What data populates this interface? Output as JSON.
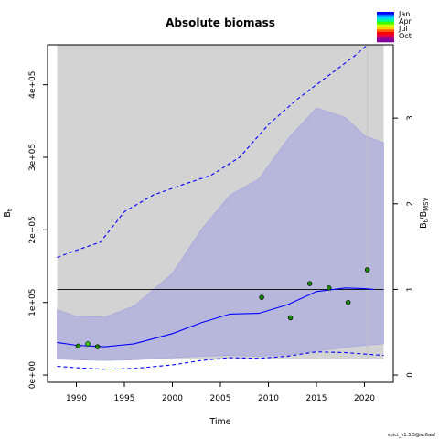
{
  "chart_data": {
    "type": "line",
    "title": "Absolute biomass",
    "xlabel": "Time",
    "ylabel": "B",
    "ylabel_sub": "t",
    "y2label": "B",
    "y2label_sub": "t",
    "y2label_mid": "/B",
    "y2label_sub2": "MSY",
    "footer": "spict_v1.3.5@ac6aaf",
    "xlim": [
      1987,
      2023
    ],
    "ylim": [
      -10000,
      455000
    ],
    "x_ticks": [
      1990,
      1995,
      2000,
      2005,
      2010,
      2015,
      2020
    ],
    "y_ticks": [
      {
        "value": 0,
        "label": "0e+00"
      },
      {
        "value": 100000,
        "label": "1e+05"
      },
      {
        "value": 200000,
        "label": "2e+05"
      },
      {
        "value": 300000,
        "label": "3e+05"
      },
      {
        "value": 400000,
        "label": "4e+05"
      }
    ],
    "y2_ticks": [
      {
        "value": 0,
        "label": "0"
      },
      {
        "value": 1,
        "label": "1"
      },
      {
        "value": 2,
        "label": "2"
      },
      {
        "value": 3,
        "label": "3"
      }
    ],
    "bmsy": 118000,
    "grey_region": {
      "x_start": 1988,
      "x_end": 2022,
      "y_bottom": 22000
    },
    "vertical_line_x": 2020.3,
    "bmsy_band": {
      "x": [
        1988,
        1990,
        1993,
        1996,
        2000,
        2003,
        2006,
        2009,
        2012,
        2015,
        2018,
        2020,
        2022
      ],
      "lower": [
        22000,
        21000,
        20000,
        21000,
        24000,
        26000,
        27000,
        26000,
        28000,
        33000,
        38000,
        41000,
        43000
      ],
      "upper": [
        90000,
        81000,
        80000,
        95000,
        140000,
        200000,
        248000,
        270000,
        325000,
        368000,
        355000,
        330000,
        320000
      ]
    },
    "series": [
      {
        "name": "",
        "style": "solid",
        "x": [
          1988,
          1990,
          1993,
          1996,
          2000,
          2003,
          2006,
          2009,
          2012,
          2015,
          2018,
          2020,
          2021
        ],
        "values": [
          45000,
          41000,
          39000,
          43000,
          57000,
          72000,
          84000,
          85000,
          97000,
          115000,
          120000,
          119000,
          118000
        ]
      },
      {
        "name": "",
        "style": "dashed",
        "x": [
          1988,
          1990,
          1992.5,
          1995,
          1998,
          2001,
          2004,
          2007,
          2010,
          2013,
          2016,
          2019,
          2020.6
        ],
        "values": [
          162000,
          172000,
          183000,
          225000,
          248000,
          262000,
          275000,
          300000,
          345000,
          380000,
          410000,
          440000,
          458000
        ]
      },
      {
        "name": "",
        "style": "dashed",
        "x": [
          1988,
          1990,
          1993,
          1996,
          2000,
          2003,
          2006,
          2009,
          2012,
          2015,
          2018,
          2020,
          2022
        ],
        "values": [
          12000,
          10000,
          8000,
          9000,
          14000,
          20000,
          24000,
          23000,
          26000,
          32000,
          31000,
          29000,
          27000
        ]
      }
    ],
    "observations": [
      {
        "x": 1990.2,
        "y": 40000,
        "color": "#1a8a00"
      },
      {
        "x": 1991.2,
        "y": 43000,
        "color": "#2bd000"
      },
      {
        "x": 1992.2,
        "y": 39000,
        "color": "#1a8a00"
      },
      {
        "x": 2009.3,
        "y": 107000,
        "color": "#1a8a00"
      },
      {
        "x": 2012.3,
        "y": 79000,
        "color": "#1a8a00"
      },
      {
        "x": 2014.3,
        "y": 126000,
        "color": "#1a8a00"
      },
      {
        "x": 2016.3,
        "y": 120000,
        "color": "#1a8a00"
      },
      {
        "x": 2018.3,
        "y": 100000,
        "color": "#1a8a00"
      },
      {
        "x": 2020.3,
        "y": 145000,
        "color": "#1a8a00"
      }
    ],
    "legend": {
      "placement": "top-right",
      "entries": [
        "Jan",
        "Apr",
        "Jul",
        "Oct"
      ],
      "colors": [
        "#0000ff",
        "#0077ff",
        "#00d8ff",
        "#00ff80",
        "#40ff00",
        "#d0ff00",
        "#ffd000",
        "#ff6000",
        "#ff0000",
        "#e0004a",
        "#a00090",
        "#8000a0"
      ]
    },
    "colors": {
      "grey_region": "#d3d3d3",
      "band_fill": "#b7b7dc",
      "band_stroke": "#a0a0e0",
      "line": "#0000ff",
      "bmsy_line": "#000000",
      "vline": "#c4c4c4"
    }
  }
}
